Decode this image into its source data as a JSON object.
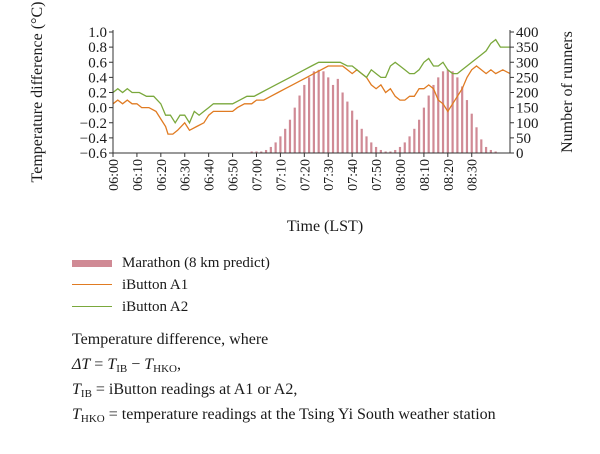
{
  "chart_data": {
    "type": "bar+line",
    "xlabel": "Time (LST)",
    "ylabel_left": "Temperature difference (°C)",
    "ylabel_right": "Number of runners",
    "ylim_left": [
      -0.6,
      1.0
    ],
    "ylim_right": [
      0,
      400
    ],
    "yticks_left": [
      "−0.6",
      "−0.4",
      "−0.2",
      "0.0",
      "0.2",
      "0.4",
      "0.6",
      "0.8",
      "1.0"
    ],
    "yticks_right": [
      "0",
      "50",
      "100",
      "150",
      "200",
      "250",
      "300",
      "350",
      "400"
    ],
    "xticks": [
      "06:00",
      "06:10",
      "06:20",
      "06:30",
      "06:40",
      "06:50",
      "07:00",
      "07:10",
      "07:20",
      "07:30",
      "07:40",
      "07:50",
      "08:00",
      "08:10",
      "08:20",
      "08:30"
    ],
    "x_minutes_start": 0,
    "x_minutes_end": 150,
    "series": [
      {
        "name": "Marathon (8 km predict)",
        "kind": "bar",
        "axis": "right",
        "color": "#d08a95",
        "points": [
          [
            58,
            5
          ],
          [
            60,
            5
          ],
          [
            62,
            5
          ],
          [
            64,
            10
          ],
          [
            66,
            20
          ],
          [
            68,
            35
          ],
          [
            70,
            55
          ],
          [
            72,
            80
          ],
          [
            74,
            110
          ],
          [
            76,
            150
          ],
          [
            78,
            190
          ],
          [
            80,
            225
          ],
          [
            82,
            250
          ],
          [
            84,
            270
          ],
          [
            86,
            275
          ],
          [
            88,
            270
          ],
          [
            90,
            250
          ],
          [
            92,
            225
          ],
          [
            94,
            245
          ],
          [
            96,
            200
          ],
          [
            98,
            170
          ],
          [
            100,
            140
          ],
          [
            102,
            110
          ],
          [
            104,
            80
          ],
          [
            106,
            55
          ],
          [
            108,
            35
          ],
          [
            110,
            20
          ],
          [
            112,
            10
          ],
          [
            114,
            5
          ],
          [
            116,
            5
          ],
          [
            118,
            10
          ],
          [
            120,
            20
          ],
          [
            122,
            35
          ],
          [
            124,
            55
          ],
          [
            126,
            80
          ],
          [
            128,
            110
          ],
          [
            130,
            150
          ],
          [
            132,
            190
          ],
          [
            134,
            225
          ],
          [
            136,
            250
          ],
          [
            138,
            270
          ],
          [
            140,
            275
          ],
          [
            142,
            270
          ],
          [
            144,
            250
          ],
          [
            146,
            220
          ],
          [
            148,
            175
          ],
          [
            150,
            130
          ],
          [
            152,
            85
          ],
          [
            154,
            45
          ],
          [
            156,
            20
          ],
          [
            158,
            10
          ],
          [
            160,
            5
          ]
        ]
      },
      {
        "name": "iButton A1",
        "kind": "line",
        "axis": "left",
        "color": "#e07b22",
        "points": [
          [
            0,
            0.05
          ],
          [
            2,
            0.1
          ],
          [
            4,
            0.05
          ],
          [
            6,
            0.1
          ],
          [
            8,
            0.05
          ],
          [
            10,
            0.05
          ],
          [
            12,
            0.0
          ],
          [
            15,
            0.0
          ],
          [
            18,
            -0.05
          ],
          [
            20,
            -0.15
          ],
          [
            22,
            -0.25
          ],
          [
            23,
            -0.35
          ],
          [
            25,
            -0.35
          ],
          [
            27,
            -0.3
          ],
          [
            30,
            -0.2
          ],
          [
            32,
            -0.3
          ],
          [
            35,
            -0.25
          ],
          [
            38,
            -0.2
          ],
          [
            40,
            -0.1
          ],
          [
            42,
            -0.05
          ],
          [
            45,
            -0.05
          ],
          [
            48,
            -0.05
          ],
          [
            50,
            -0.05
          ],
          [
            52,
            0.0
          ],
          [
            55,
            0.05
          ],
          [
            58,
            0.05
          ],
          [
            60,
            0.1
          ],
          [
            63,
            0.1
          ],
          [
            66,
            0.15
          ],
          [
            69,
            0.2
          ],
          [
            72,
            0.25
          ],
          [
            75,
            0.3
          ],
          [
            78,
            0.35
          ],
          [
            81,
            0.4
          ],
          [
            84,
            0.45
          ],
          [
            87,
            0.5
          ],
          [
            90,
            0.55
          ],
          [
            93,
            0.55
          ],
          [
            96,
            0.55
          ],
          [
            98,
            0.5
          ],
          [
            100,
            0.45
          ],
          [
            102,
            0.5
          ],
          [
            104,
            0.45
          ],
          [
            106,
            0.4
          ],
          [
            108,
            0.3
          ],
          [
            110,
            0.25
          ],
          [
            112,
            0.3
          ],
          [
            114,
            0.2
          ],
          [
            116,
            0.25
          ],
          [
            118,
            0.15
          ],
          [
            120,
            0.1
          ],
          [
            122,
            0.1
          ],
          [
            124,
            0.15
          ],
          [
            126,
            0.15
          ],
          [
            128,
            0.25
          ],
          [
            130,
            0.25
          ],
          [
            132,
            0.3
          ],
          [
            134,
            0.25
          ],
          [
            136,
            0.1
          ],
          [
            138,
            0.05
          ],
          [
            140,
            -0.05
          ],
          [
            142,
            0.05
          ],
          [
            144,
            0.15
          ],
          [
            146,
            0.25
          ],
          [
            148,
            0.4
          ],
          [
            150,
            0.5
          ],
          [
            152,
            0.55
          ],
          [
            154,
            0.5
          ],
          [
            156,
            0.45
          ],
          [
            158,
            0.5
          ],
          [
            160,
            0.45
          ],
          [
            163,
            0.5
          ],
          [
            166,
            0.45
          ]
        ]
      },
      {
        "name": "iButton A2",
        "kind": "line",
        "axis": "left",
        "color": "#7aa83c",
        "points": [
          [
            0,
            0.2
          ],
          [
            2,
            0.25
          ],
          [
            4,
            0.2
          ],
          [
            6,
            0.25
          ],
          [
            8,
            0.2
          ],
          [
            11,
            0.2
          ],
          [
            14,
            0.15
          ],
          [
            17,
            0.15
          ],
          [
            20,
            0.05
          ],
          [
            22,
            -0.1
          ],
          [
            24,
            -0.1
          ],
          [
            26,
            -0.2
          ],
          [
            28,
            -0.1
          ],
          [
            30,
            -0.1
          ],
          [
            32,
            -0.2
          ],
          [
            34,
            -0.05
          ],
          [
            36,
            -0.1
          ],
          [
            38,
            -0.05
          ],
          [
            40,
            0.0
          ],
          [
            42,
            0.05
          ],
          [
            45,
            0.05
          ],
          [
            48,
            0.05
          ],
          [
            50,
            0.05
          ],
          [
            53,
            0.1
          ],
          [
            56,
            0.15
          ],
          [
            59,
            0.15
          ],
          [
            62,
            0.2
          ],
          [
            65,
            0.25
          ],
          [
            68,
            0.3
          ],
          [
            71,
            0.35
          ],
          [
            74,
            0.4
          ],
          [
            77,
            0.45
          ],
          [
            80,
            0.5
          ],
          [
            83,
            0.55
          ],
          [
            86,
            0.6
          ],
          [
            89,
            0.6
          ],
          [
            92,
            0.6
          ],
          [
            95,
            0.6
          ],
          [
            98,
            0.55
          ],
          [
            100,
            0.55
          ],
          [
            102,
            0.5
          ],
          [
            104,
            0.45
          ],
          [
            106,
            0.4
          ],
          [
            108,
            0.5
          ],
          [
            110,
            0.45
          ],
          [
            112,
            0.4
          ],
          [
            114,
            0.4
          ],
          [
            116,
            0.55
          ],
          [
            118,
            0.6
          ],
          [
            120,
            0.55
          ],
          [
            122,
            0.5
          ],
          [
            124,
            0.45
          ],
          [
            126,
            0.45
          ],
          [
            128,
            0.5
          ],
          [
            130,
            0.6
          ],
          [
            132,
            0.65
          ],
          [
            134,
            0.55
          ],
          [
            136,
            0.55
          ],
          [
            138,
            0.6
          ],
          [
            140,
            0.5
          ],
          [
            142,
            0.45
          ],
          [
            144,
            0.45
          ],
          [
            146,
            0.5
          ],
          [
            148,
            0.55
          ],
          [
            150,
            0.6
          ],
          [
            152,
            0.65
          ],
          [
            154,
            0.7
          ],
          [
            156,
            0.75
          ],
          [
            158,
            0.85
          ],
          [
            160,
            0.9
          ],
          [
            162,
            0.8
          ],
          [
            164,
            0.8
          ],
          [
            166,
            0.8
          ]
        ]
      }
    ]
  },
  "legend": {
    "bar": "Marathon (8 km predict)",
    "a1": "iButton A1",
    "a2": "iButton A2"
  },
  "note": {
    "line1": "Temperature difference, where",
    "delta": "ΔT",
    "eq1": " = ",
    "t": "T",
    "sub_ib": "IB",
    "sub_hko": "HKO",
    "minus": " − ",
    "comma": ",",
    "eq2": " = iButton readings at A1 or A2,",
    "eq3": " = temperature readings at the Tsing Yi South weather station"
  }
}
